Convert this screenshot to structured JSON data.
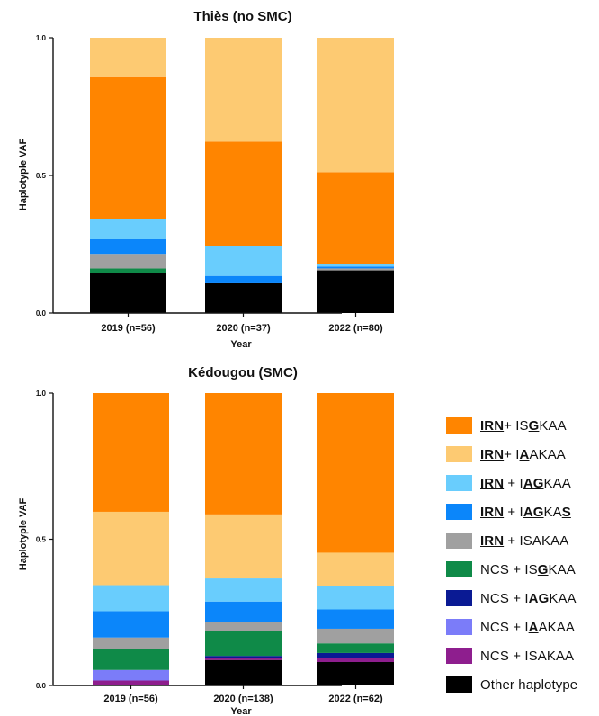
{
  "legend": {
    "items": [
      {
        "color": "#ff8500",
        "parts": [
          [
            "IRN",
            "ub"
          ],
          [
            "+ IS",
            ""
          ],
          [
            "G",
            "ub"
          ],
          [
            "KAA",
            ""
          ]
        ]
      },
      {
        "color": "#fdca72",
        "parts": [
          [
            "IRN",
            "ub"
          ],
          [
            "+ I",
            ""
          ],
          [
            "A",
            "ub"
          ],
          [
            "AKAA",
            ""
          ]
        ]
      },
      {
        "color": "#69cdfd",
        "parts": [
          [
            "IRN",
            "ub"
          ],
          [
            " + I",
            ""
          ],
          [
            "AG",
            "ub"
          ],
          [
            "KAA",
            ""
          ]
        ]
      },
      {
        "color": "#0b86fa",
        "parts": [
          [
            "IRN",
            "ub"
          ],
          [
            " + I",
            ""
          ],
          [
            "AG",
            "ub"
          ],
          [
            "KA",
            ""
          ],
          [
            "S",
            "ub"
          ]
        ]
      },
      {
        "color": "#a0a0a0",
        "parts": [
          [
            "IRN",
            "ub"
          ],
          [
            " + ISAKAA",
            ""
          ]
        ]
      },
      {
        "color": "#0f8a48",
        "parts": [
          [
            "NCS + IS",
            ""
          ],
          [
            "G",
            "ub"
          ],
          [
            "KAA",
            ""
          ]
        ]
      },
      {
        "color": "#0a1a94",
        "parts": [
          [
            "NCS + I",
            ""
          ],
          [
            "AG",
            "ub"
          ],
          [
            "KAA",
            ""
          ]
        ]
      },
      {
        "color": "#7b7cf9",
        "parts": [
          [
            "NCS + I",
            ""
          ],
          [
            "A",
            "ub"
          ],
          [
            "AKAA",
            ""
          ]
        ]
      },
      {
        "color": "#8e1e8e",
        "parts": [
          [
            "NCS + ISAKAA",
            ""
          ]
        ]
      },
      {
        "color": "#000000",
        "parts": [
          [
            "Other haplotype",
            ""
          ]
        ]
      }
    ]
  },
  "chart_data": [
    {
      "type": "bar",
      "stacked": true,
      "title": "Thiès (no SMC)",
      "xlabel": "Year",
      "ylabel": "Haplotyple VAF",
      "ylim": [
        0,
        1.0
      ],
      "yticks": [
        "0.0",
        "0.5",
        "1.0"
      ],
      "categories": [
        "2019 (n=56)",
        "2020 (n=37)",
        "2022 (n=80)"
      ],
      "series": [
        {
          "name": "Other haplotype",
          "color": "#000000",
          "values": [
            0.145,
            0.108,
            0.155
          ]
        },
        {
          "name": "NCS + ISAKAA",
          "color": "#8e1e8e",
          "values": [
            0,
            0,
            0
          ]
        },
        {
          "name": "NCS + IAAKAA",
          "color": "#7b7cf9",
          "values": [
            0,
            0,
            0
          ]
        },
        {
          "name": "NCS + IAGKAA",
          "color": "#0a1a94",
          "values": [
            0,
            0,
            0
          ]
        },
        {
          "name": "NCS + ISGKAA",
          "color": "#0f8a48",
          "values": [
            0.017,
            0,
            0
          ]
        },
        {
          "name": "IRN + ISAKAA",
          "color": "#a0a0a0",
          "values": [
            0.053,
            0,
            0.007
          ]
        },
        {
          "name": "IRN + IAGKAS",
          "color": "#0b86fa",
          "values": [
            0.053,
            0.027,
            0.007
          ]
        },
        {
          "name": "IRN + IAGKAA",
          "color": "#69cdfd",
          "values": [
            0.072,
            0.109,
            0.008
          ]
        },
        {
          "name": "IRN+ ISGKAA",
          "color": "#ff8500",
          "values": [
            0.517,
            0.379,
            0.335
          ]
        },
        {
          "name": "IRN+ IAAKAA",
          "color": "#fdca72",
          "values": [
            0.143,
            0.377,
            0.488
          ]
        }
      ]
    },
    {
      "type": "bar",
      "stacked": true,
      "title": "Kédougou (SMC)",
      "xlabel": "Year",
      "ylabel": "Haplotyple VAF",
      "ylim": [
        0,
        1.0
      ],
      "yticks": [
        "0.0",
        "0.5",
        "1.0"
      ],
      "categories": [
        "2019 (n=56)",
        "2020 (n=138)",
        "2022 (n=62)"
      ],
      "series": [
        {
          "name": "Other haplotype",
          "color": "#000000",
          "values": [
            0,
            0.087,
            0.08
          ]
        },
        {
          "name": "NCS + ISAKAA",
          "color": "#8e1e8e",
          "values": [
            0.017,
            0.007,
            0.015
          ]
        },
        {
          "name": "NCS + IAAKAA",
          "color": "#7b7cf9",
          "values": [
            0.036,
            0,
            0
          ]
        },
        {
          "name": "NCS + IAGKAA",
          "color": "#0a1a94",
          "values": [
            0,
            0.007,
            0.016
          ]
        },
        {
          "name": "NCS + ISGKAA",
          "color": "#0f8a48",
          "values": [
            0.071,
            0.086,
            0.033
          ]
        },
        {
          "name": "IRN + ISAKAA",
          "color": "#a0a0a0",
          "values": [
            0.04,
            0.03,
            0.05
          ]
        },
        {
          "name": "IRN + IAGKAS",
          "color": "#0b86fa",
          "values": [
            0.09,
            0.07,
            0.066
          ]
        },
        {
          "name": "IRN + IAGKAA",
          "color": "#69cdfd",
          "values": [
            0.089,
            0.079,
            0.079
          ]
        },
        {
          "name": "IRN+ IAAKAA",
          "color": "#fdca72",
          "values": [
            0.251,
            0.219,
            0.115
          ]
        },
        {
          "name": "IRN+ ISGKAA",
          "color": "#ff8500",
          "values": [
            0.406,
            0.415,
            0.546
          ]
        }
      ]
    }
  ]
}
